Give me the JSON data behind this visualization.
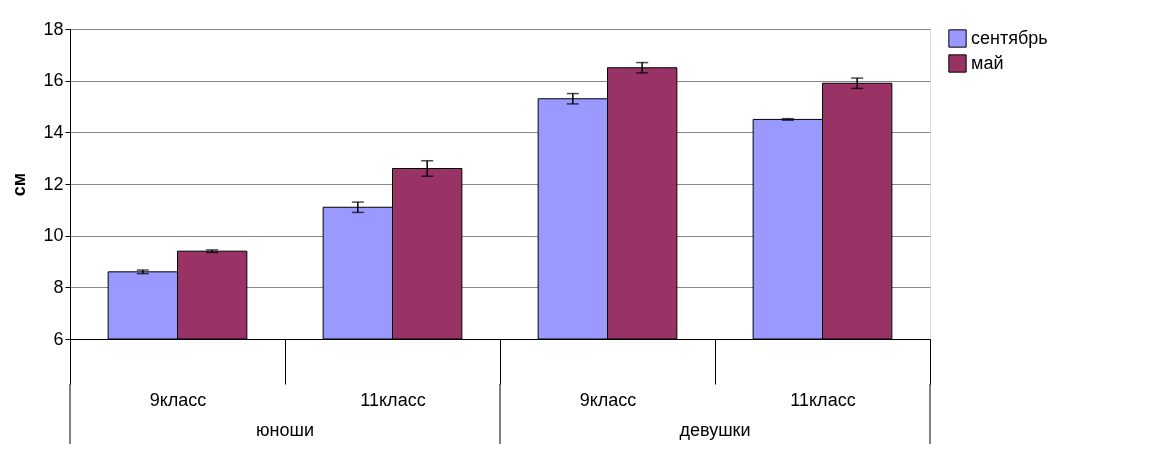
{
  "chart_data": {
    "type": "bar",
    "ylabel": "см",
    "categories": [
      "9класс",
      "11класс",
      "9класс",
      "11класс"
    ],
    "series": [
      {
        "name": "сентябрь",
        "color": "#9999ff",
        "values": [
          8.6,
          11.1,
          15.3,
          14.5
        ],
        "errors": [
          0.07,
          0.2,
          0.2,
          0.03
        ]
      },
      {
        "name": "май",
        "color": "#993366",
        "values": [
          9.4,
          12.6,
          16.5,
          15.9
        ],
        "errors": [
          0.05,
          0.3,
          0.2,
          0.2
        ]
      }
    ],
    "annotations": [
      "юноши",
      "девушки"
    ],
    "ylim": [
      6,
      18
    ],
    "yticks": [
      6,
      8,
      10,
      12,
      14,
      16,
      18
    ],
    "grid": "y",
    "legend": "right"
  }
}
